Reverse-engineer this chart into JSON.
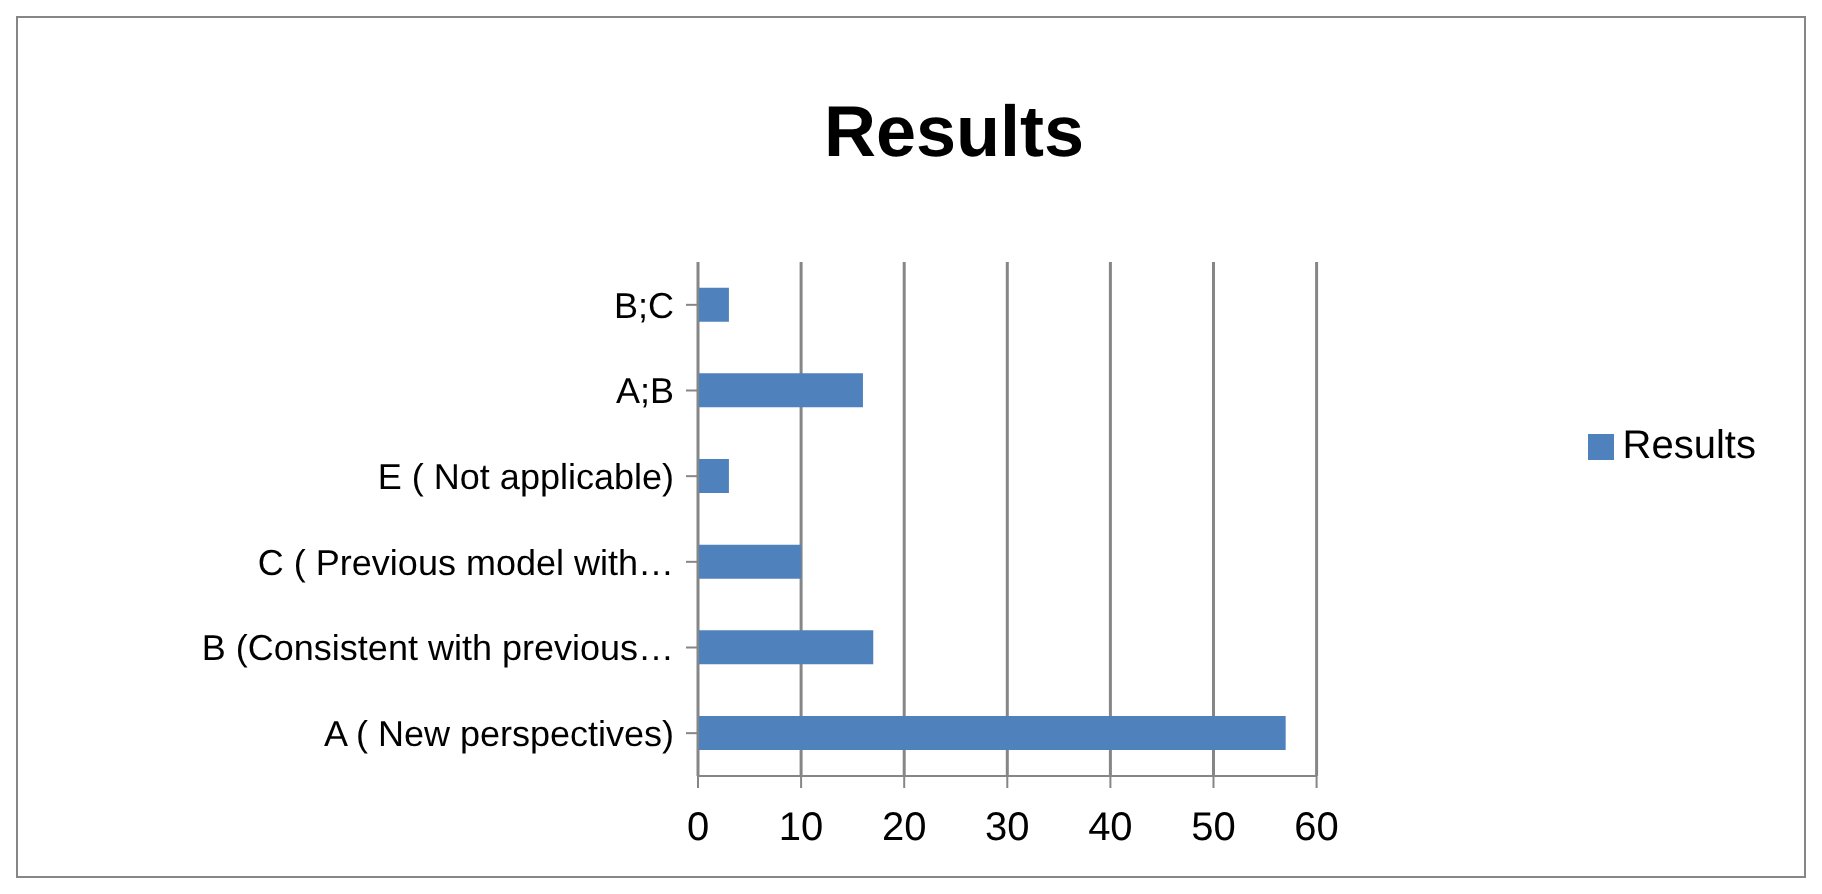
{
  "chart_data": {
    "type": "bar",
    "orientation": "horizontal",
    "title": "Results",
    "categories": [
      "B;C",
      "A;B",
      "E ( Not applicable)",
      "C ( Previous model with…",
      "B (Consistent with previous…",
      "A ( New perspectives)"
    ],
    "series": [
      {
        "name": "Results",
        "color": "#4f81bd",
        "values": [
          3,
          16,
          3,
          10,
          17,
          57
        ]
      }
    ],
    "xlim": [
      0,
      60
    ],
    "xticks": [
      0,
      10,
      20,
      30,
      40,
      50,
      60
    ],
    "grid": "x",
    "legend": "right"
  }
}
